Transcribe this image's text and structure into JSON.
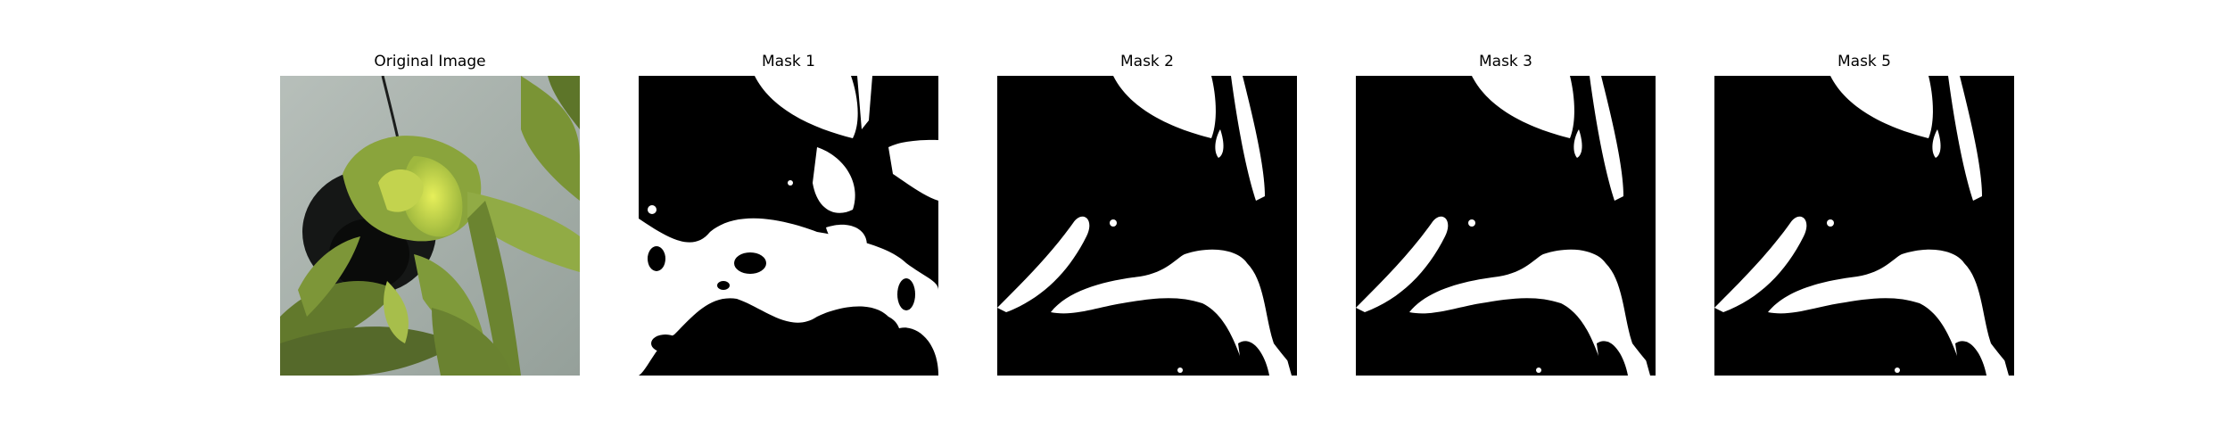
{
  "figure": {
    "panels": [
      {
        "title": "Original Image",
        "kind": "photo"
      },
      {
        "title": "Mask 1",
        "kind": "mask"
      },
      {
        "title": "Mask 2",
        "kind": "mask"
      },
      {
        "title": "Mask 3",
        "kind": "mask"
      },
      {
        "title": "Mask 5",
        "kind": "mask"
      }
    ]
  },
  "colors": {
    "mask_foreground": "#ffffff",
    "mask_background": "#000000",
    "leaf_green": "#7f9a3a",
    "wall_gray": "#a9b2ad",
    "pot_dark": "#101211"
  }
}
